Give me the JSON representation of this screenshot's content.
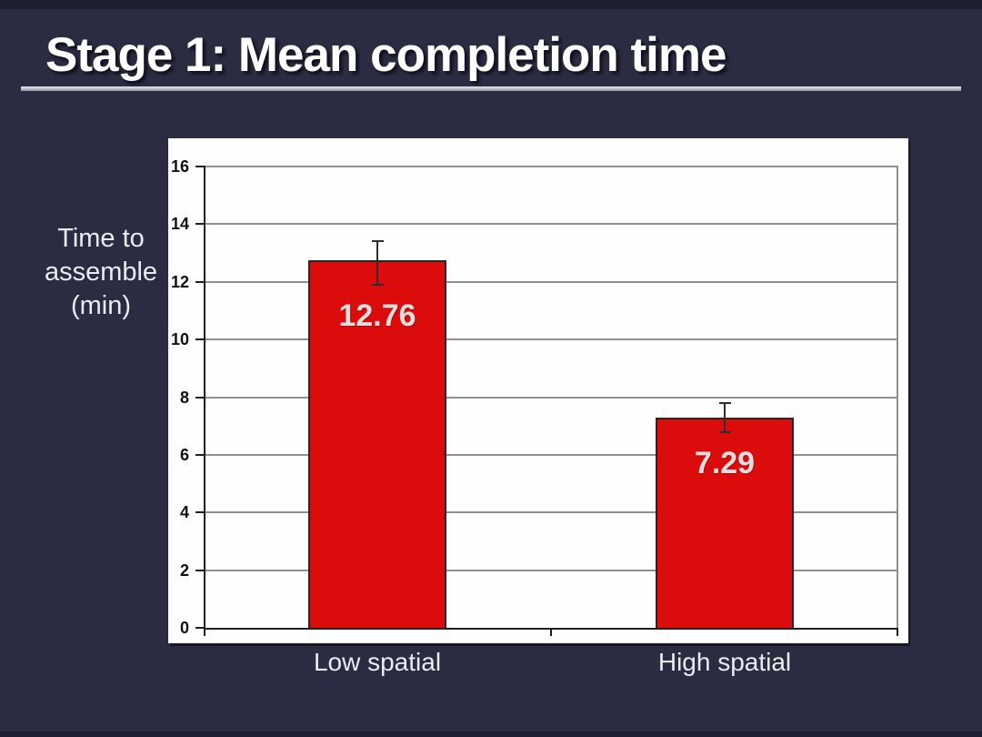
{
  "slide": {
    "title": "Stage 1: Mean completion time",
    "y_axis_title_display": "Time to\nassemble\n(min)",
    "background_color": "#2b2b41",
    "title_color": "#ffffff",
    "rule_color": "#c2c2ca"
  },
  "chart_data": {
    "type": "bar",
    "title": "Stage 1: Mean completion time",
    "categories": [
      "Low spatial",
      "High spatial"
    ],
    "values": [
      12.76,
      7.29
    ],
    "value_labels": [
      "12.76",
      "7.29"
    ],
    "error_bars": [
      {
        "low": 11.9,
        "high": 13.4
      },
      {
        "low": 6.8,
        "high": 7.8
      }
    ],
    "ylabel": "Time to assemble (min)",
    "xlabel": "",
    "ylim": [
      0,
      16
    ],
    "yticks": [
      0,
      2,
      4,
      6,
      8,
      10,
      12,
      14,
      16
    ],
    "grid": true,
    "legend": false,
    "bar_color": "#dd0c0c",
    "bar_border_color": "#262626",
    "error_bar_color": "#2e2e2e",
    "value_label_color": "#dedede",
    "gridline_color": "#8f8f8f",
    "plot_background": "#fefefe"
  }
}
